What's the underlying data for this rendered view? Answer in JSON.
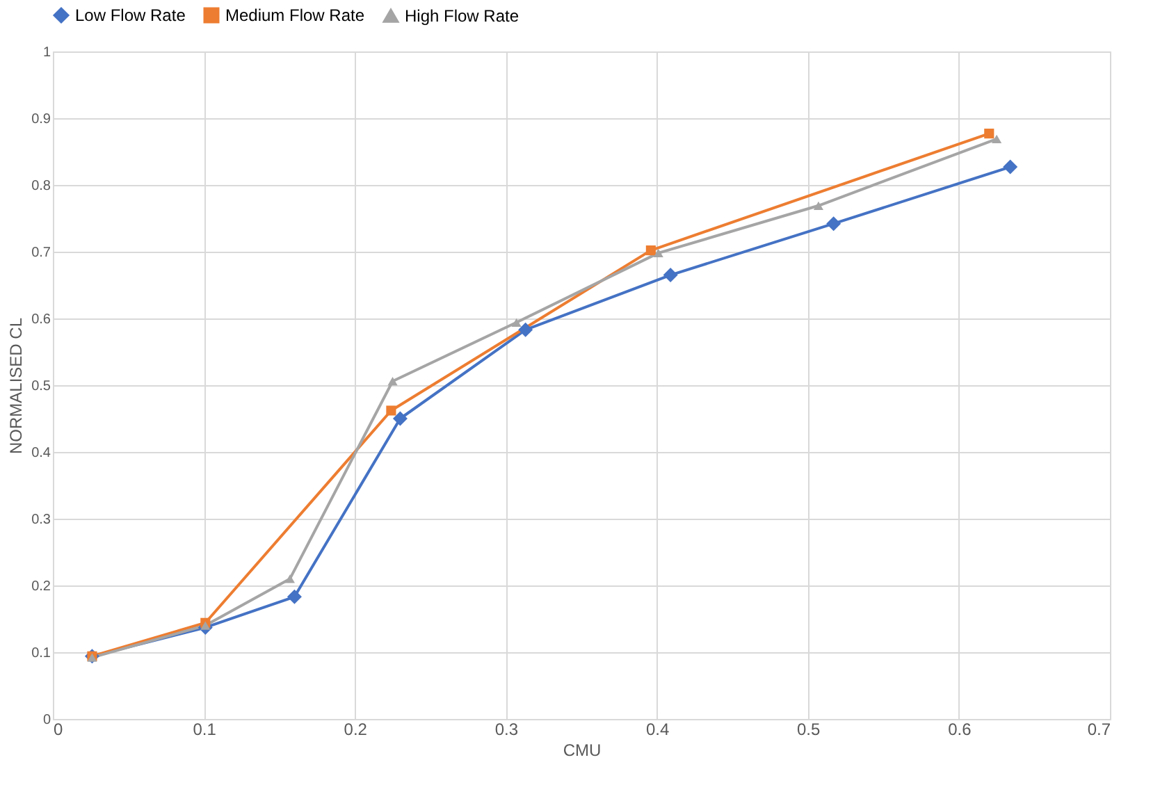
{
  "chart_data": {
    "type": "line",
    "xlabel": "CMU",
    "ylabel": "NORMALISED CL",
    "xlim": [
      0,
      0.7
    ],
    "xticks": [
      0,
      0.1,
      0.2,
      0.3,
      0.4,
      0.5,
      0.6,
      0.7
    ],
    "ylim": [
      0,
      1
    ],
    "yticks": [
      0,
      0.1,
      0.2,
      0.3,
      0.4,
      0.5,
      0.6,
      0.7,
      0.8,
      0.9,
      1
    ],
    "grid": true,
    "legend": "top",
    "line_style": "solid",
    "series": [
      {
        "name": "Low Flow Rate",
        "color": "#4472c4",
        "marker": "diamond",
        "x": [
          0.026,
          0.101,
          0.16,
          0.23,
          0.313,
          0.409,
          0.517,
          0.634
        ],
        "values": [
          0.094,
          0.137,
          0.183,
          0.45,
          0.583,
          0.665,
          0.742,
          0.827
        ]
      },
      {
        "name": "Medium Flow Rate",
        "color": "#ed7d31",
        "marker": "square",
        "x": [
          0.026,
          0.101,
          0.224,
          0.396,
          0.62
        ],
        "values": [
          0.094,
          0.144,
          0.462,
          0.702,
          0.877
        ]
      },
      {
        "name": "High Flow Rate",
        "color": "#a5a5a5",
        "marker": "triangle",
        "x": [
          0.026,
          0.101,
          0.157,
          0.225,
          0.307,
          0.401,
          0.507,
          0.625
        ],
        "values": [
          0.092,
          0.14,
          0.21,
          0.506,
          0.594,
          0.698,
          0.769,
          0.869
        ]
      }
    ]
  }
}
